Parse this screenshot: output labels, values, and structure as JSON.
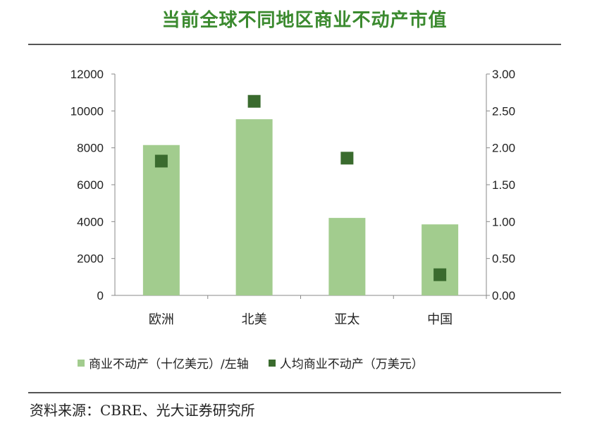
{
  "title": "当前全球不同地区商业不动产市值",
  "source": "资料来源：CBRE、光大证券研究所",
  "colors": {
    "bar": "#a2cc8e",
    "marker": "#3a6b2e",
    "title": "#3b8a2f"
  },
  "chart_data": {
    "type": "bar",
    "categories": [
      "欧洲",
      "北美",
      "亚太",
      "中国"
    ],
    "series": [
      {
        "name": "商业不动产（十亿美元）/左轴",
        "type": "bar",
        "axis": "left",
        "values": [
          8150,
          9550,
          4200,
          3850
        ]
      },
      {
        "name": "人均商业不动产（万美元）",
        "type": "scatter",
        "axis": "right",
        "values": [
          1.82,
          2.63,
          1.86,
          0.28
        ]
      }
    ],
    "left_axis": {
      "min": 0,
      "max": 12000,
      "ticks": [
        "0",
        "2000",
        "4000",
        "6000",
        "8000",
        "10000",
        "12000"
      ]
    },
    "right_axis": {
      "min": 0,
      "max": 3,
      "ticks": [
        "0.00",
        "0.50",
        "1.00",
        "1.50",
        "2.00",
        "2.50",
        "3.00"
      ]
    },
    "grid": false,
    "legend_position": "bottom"
  }
}
